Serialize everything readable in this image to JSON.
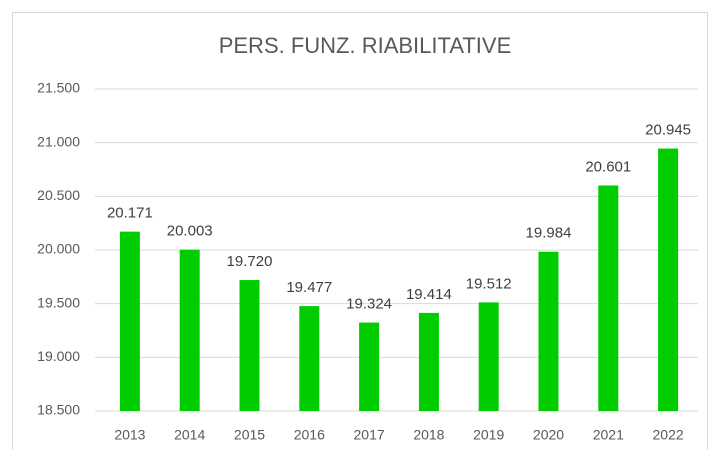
{
  "chart_data": {
    "type": "bar",
    "title": "PERS. FUNZ. RIABILITATIVE",
    "categories": [
      "2013",
      "2014",
      "2015",
      "2016",
      "2017",
      "2018",
      "2019",
      "2020",
      "2021",
      "2022"
    ],
    "values": [
      20171,
      20003,
      19720,
      19477,
      19324,
      19414,
      19512,
      19984,
      20601,
      20945
    ],
    "value_labels": [
      "20.171",
      "20.003",
      "19.720",
      "19.477",
      "19.324",
      "19.414",
      "19.512",
      "19.984",
      "20.601",
      "20.945"
    ],
    "color": "#00cc00",
    "ylim": [
      18500,
      21500
    ],
    "yticks": [
      {
        "value": 18500,
        "label": "18.500"
      },
      {
        "value": 19000,
        "label": "19.000"
      },
      {
        "value": 19500,
        "label": "19.500"
      },
      {
        "value": 20000,
        "label": "20.000"
      },
      {
        "value": 20500,
        "label": "20.500"
      },
      {
        "value": 21000,
        "label": "21.000"
      },
      {
        "value": 21500,
        "label": "21.500"
      }
    ],
    "grid": true
  }
}
